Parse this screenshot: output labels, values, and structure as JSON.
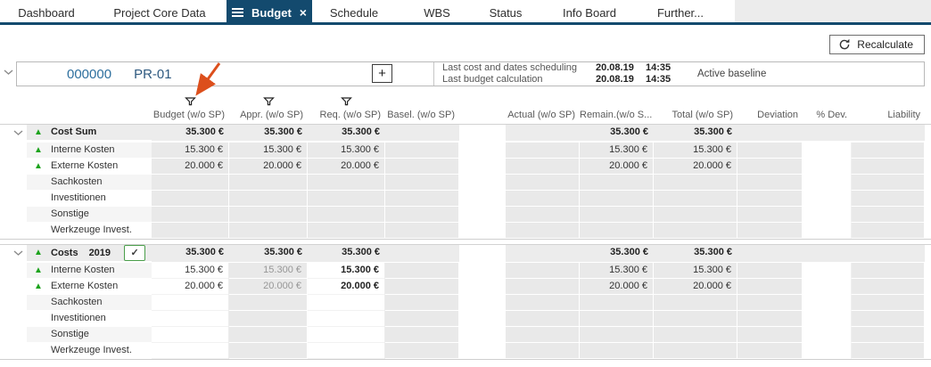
{
  "tabs": [
    {
      "label": "Dashboard",
      "active": false
    },
    {
      "label": "Project Core Data",
      "active": false
    },
    {
      "label": "Budget",
      "active": true
    },
    {
      "label": "Schedule",
      "active": false
    },
    {
      "label": "WBS",
      "active": false
    },
    {
      "label": "Status",
      "active": false
    },
    {
      "label": "Info Board",
      "active": false
    },
    {
      "label": "Further...",
      "active": false
    }
  ],
  "toolbar": {
    "recalculate_label": "Recalculate"
  },
  "project": {
    "id": "000000",
    "code": "PR-01",
    "info": [
      {
        "label": "Last cost and dates scheduling",
        "date": "20.08.19",
        "time": "14:35"
      },
      {
        "label": "Last budget calculation",
        "date": "20.08.19",
        "time": "14:35"
      }
    ],
    "baseline_label": "Active baseline"
  },
  "table": {
    "columns": [
      {
        "key": "budget",
        "label": "Budget (w/o SP)",
        "filter": true
      },
      {
        "key": "appr",
        "label": "Appr. (w/o SP)",
        "filter": true
      },
      {
        "key": "req",
        "label": "Req. (w/o SP)",
        "filter": true
      },
      {
        "key": "basel",
        "label": "Basel. (w/o SP)",
        "filter": false
      },
      {
        "key": "actual",
        "label": "Actual (w/o SP)",
        "filter": false
      },
      {
        "key": "remain",
        "label": "Remain.(w/o S...",
        "filter": false
      },
      {
        "key": "total",
        "label": "Total (w/o SP)",
        "filter": false
      },
      {
        "key": "deviation",
        "label": "Deviation",
        "filter": false
      },
      {
        "key": "pdev",
        "label": "% Dev.",
        "filter": false
      },
      {
        "key": "liability",
        "label": "Liability",
        "filter": false
      }
    ],
    "blocks": [
      {
        "header": {
          "label": "Cost Sum",
          "year": "",
          "checkbox": false,
          "values": {
            "budget": "35.300 €",
            "appr": "35.300 €",
            "req": "35.300 €",
            "basel": "",
            "actual": "",
            "remain": "35.300 €",
            "total": "35.300 €",
            "deviation": "",
            "pdev": "",
            "liability": ""
          }
        },
        "rows": [
          {
            "label": "Interne Kosten",
            "indicator": true,
            "values": {
              "budget": "15.300 €",
              "appr": "15.300 €",
              "req": "15.300 €",
              "basel": "",
              "actual": "",
              "remain": "15.300 €",
              "total": "15.300 €",
              "deviation": "",
              "pdev": "",
              "liability": ""
            }
          },
          {
            "label": "Externe Kosten",
            "indicator": true,
            "values": {
              "budget": "20.000 €",
              "appr": "20.000 €",
              "req": "20.000 €",
              "basel": "",
              "actual": "",
              "remain": "20.000 €",
              "total": "20.000 €",
              "deviation": "",
              "pdev": "",
              "liability": ""
            }
          },
          {
            "label": "Sachkosten",
            "indicator": false,
            "values": {}
          },
          {
            "label": "Investitionen",
            "indicator": false,
            "values": {}
          },
          {
            "label": "Sonstige",
            "indicator": false,
            "values": {}
          },
          {
            "label": "Werkzeuge Invest.",
            "indicator": false,
            "values": {}
          }
        ]
      },
      {
        "header": {
          "label": "Costs",
          "year": "2019",
          "checkbox": true,
          "checkbox_checked": "✓",
          "values": {
            "budget": "35.300 €",
            "appr": "35.300 €",
            "req": "35.300 €",
            "basel": "",
            "actual": "",
            "remain": "35.300 €",
            "total": "35.300 €",
            "deviation": "",
            "pdev": "",
            "liability": ""
          }
        },
        "rows": [
          {
            "label": "Interne Kosten",
            "indicator": true,
            "values": {
              "budget": "15.300 €",
              "appr": "15.300 €",
              "req": "15.300 €",
              "basel": "",
              "actual": "",
              "remain": "15.300 €",
              "total": "15.300 €",
              "deviation": "",
              "pdev": "",
              "liability": ""
            }
          },
          {
            "label": "Externe Kosten",
            "indicator": true,
            "values": {
              "budget": "20.000 €",
              "appr": "20.000 €",
              "req": "20.000 €",
              "basel": "",
              "actual": "",
              "remain": "20.000 €",
              "total": "20.000 €",
              "deviation": "",
              "pdev": "",
              "liability": ""
            }
          },
          {
            "label": "Sachkosten",
            "indicator": false,
            "values": {}
          },
          {
            "label": "Investitionen",
            "indicator": false,
            "values": {}
          },
          {
            "label": "Sonstige",
            "indicator": false,
            "values": {}
          },
          {
            "label": "Werkzeuge Invest.",
            "indicator": false,
            "values": {}
          }
        ]
      }
    ]
  },
  "annotation": {
    "arrow_color": "#dc4f1c"
  },
  "colors": {
    "accent": "#134a6e",
    "trend_green": "#1ea31e",
    "link_blue": "#2d6f9e"
  }
}
